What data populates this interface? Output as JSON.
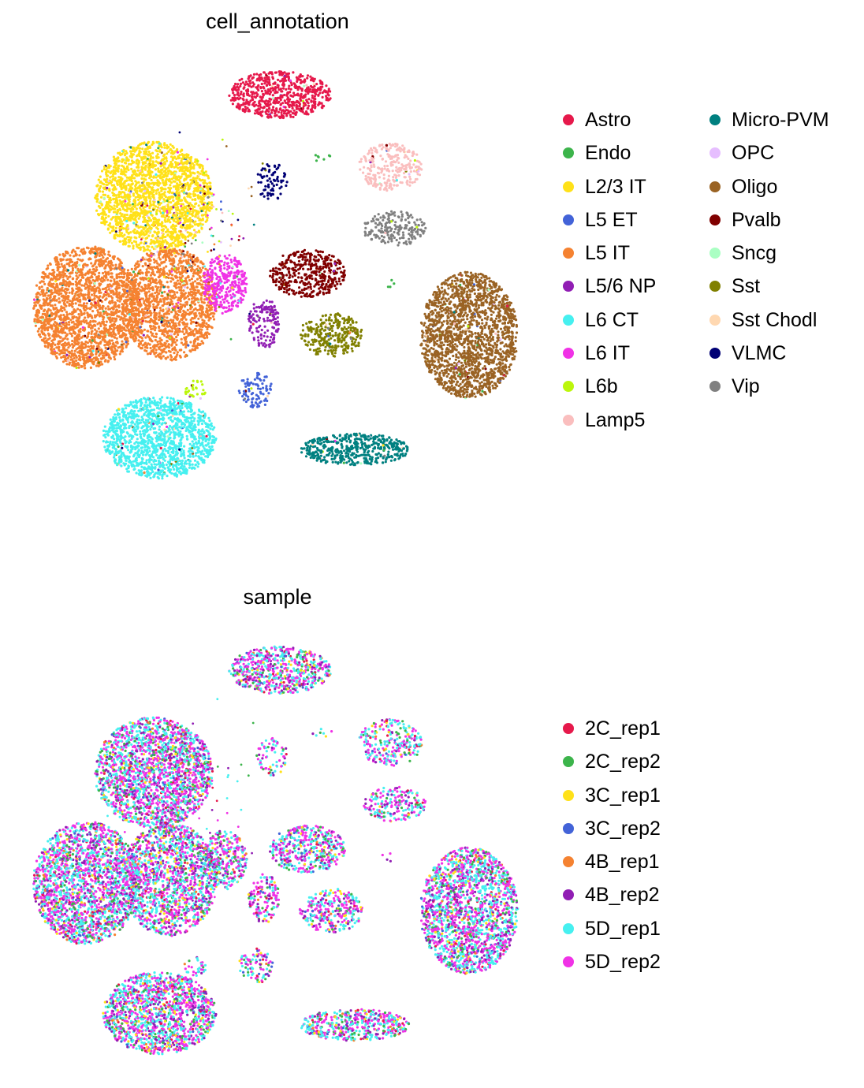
{
  "chart_data": [
    {
      "type": "scatter",
      "title": "cell_annotation",
      "xlabel": "",
      "ylabel": "",
      "grid": false,
      "legend_position": "right",
      "legend": [
        {
          "name": "Astro",
          "color": "#e6194b"
        },
        {
          "name": "Endo",
          "color": "#3cb44b"
        },
        {
          "name": "L2/3 IT",
          "color": "#ffe119"
        },
        {
          "name": "L5 ET",
          "color": "#4363d8"
        },
        {
          "name": "L5 IT",
          "color": "#f58231"
        },
        {
          "name": "L5/6 NP",
          "color": "#911eb4"
        },
        {
          "name": "L6 CT",
          "color": "#46f0f0"
        },
        {
          "name": "L6 IT",
          "color": "#f032e6"
        },
        {
          "name": "L6b",
          "color": "#bcf60c"
        },
        {
          "name": "Lamp5",
          "color": "#fabebe"
        },
        {
          "name": "Micro-PVM",
          "color": "#008080"
        },
        {
          "name": "OPC",
          "color": "#e6beff"
        },
        {
          "name": "Oligo",
          "color": "#9a6324"
        },
        {
          "name": "Pvalb",
          "color": "#800000"
        },
        {
          "name": "Sncg",
          "color": "#aaffc3"
        },
        {
          "name": "Sst",
          "color": "#808000"
        },
        {
          "name": "Sst Chodl",
          "color": "#ffd8b1"
        },
        {
          "name": "VLMC",
          "color": "#000075"
        },
        {
          "name": "Vip",
          "color": "#808080"
        }
      ]
    },
    {
      "type": "scatter",
      "title": "sample",
      "xlabel": "",
      "ylabel": "",
      "grid": false,
      "legend_position": "right",
      "legend": [
        {
          "name": "2C_rep1",
          "color": "#e6194b"
        },
        {
          "name": "2C_rep2",
          "color": "#3cb44b"
        },
        {
          "name": "3C_rep1",
          "color": "#ffe119"
        },
        {
          "name": "3C_rep2",
          "color": "#4363d8"
        },
        {
          "name": "4B_rep1",
          "color": "#f58231"
        },
        {
          "name": "4B_rep2",
          "color": "#911eb4"
        },
        {
          "name": "5D_rep1",
          "color": "#46f0f0"
        },
        {
          "name": "5D_rep2",
          "color": "#f032e6"
        }
      ]
    }
  ]
}
